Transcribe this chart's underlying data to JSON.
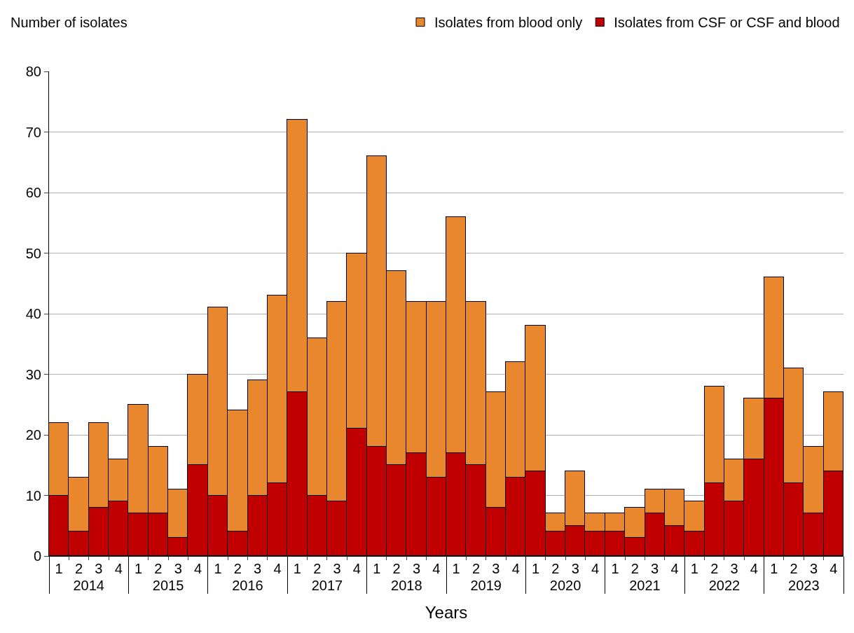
{
  "chart_data": {
    "type": "bar",
    "stacked": true,
    "xlabel": "Years",
    "ylabel": "Number of isolates",
    "categories": [
      "1",
      "2",
      "3",
      "4",
      "1",
      "2",
      "3",
      "4",
      "1",
      "2",
      "3",
      "4",
      "1",
      "2",
      "3",
      "4",
      "1",
      "2",
      "3",
      "4",
      "1",
      "2",
      "3",
      "4",
      "1",
      "2",
      "3",
      "4",
      "1",
      "2",
      "3",
      "4",
      "1",
      "2",
      "3",
      "4",
      "1",
      "2",
      "3",
      "4"
    ],
    "annotations": [
      "2014",
      "2015",
      "2016",
      "2017",
      "2018",
      "2019",
      "2020",
      "2021",
      "2022",
      "2023"
    ],
    "series": [
      {
        "name": "Isolates from CSF or CSF and blood",
        "color": "#c00000",
        "values": [
          10,
          4,
          8,
          9,
          7,
          7,
          3,
          15,
          10,
          4,
          10,
          12,
          27,
          10,
          9,
          21,
          18,
          15,
          17,
          13,
          17,
          15,
          8,
          13,
          14,
          4,
          5,
          4,
          4,
          3,
          7,
          5,
          4,
          12,
          9,
          16,
          26,
          12,
          7,
          14
        ]
      },
      {
        "name": "Isolates from blood only",
        "color": "#e8872e",
        "values": [
          12,
          9,
          14,
          7,
          18,
          11,
          8,
          15,
          31,
          20,
          19,
          31,
          45,
          26,
          33,
          29,
          48,
          32,
          25,
          29,
          39,
          27,
          19,
          19,
          24,
          3,
          9,
          3,
          3,
          5,
          4,
          6,
          5,
          16,
          7,
          10,
          20,
          19,
          11,
          13
        ]
      }
    ],
    "ylim": [
      0,
      80
    ],
    "yticks": [
      0,
      10,
      20,
      30,
      40,
      50,
      60,
      70,
      80
    ],
    "grid": "y",
    "legend": "top right"
  }
}
